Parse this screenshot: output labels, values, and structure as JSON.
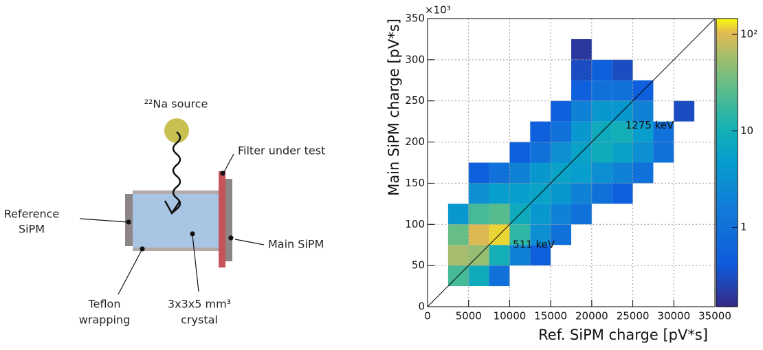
{
  "diagram": {
    "source": "²²Na source",
    "filter": "Filter under test",
    "reference": [
      "Reference",
      "SiPM"
    ],
    "main": "Main SiPM",
    "teflon": [
      "Teflon",
      "wrapping"
    ],
    "crystal": [
      "3x3x5 mm³",
      "crystal"
    ]
  },
  "chart_data": {
    "type": "heatmap",
    "xlabel": "Ref. SiPM charge [pV*s]",
    "ylabel": "Main SiPM charge [pV*s]",
    "y_multiplier": "×10³",
    "xlim": [
      0,
      35000
    ],
    "xticks": [
      0,
      5000,
      10000,
      15000,
      20000,
      25000,
      30000,
      35000
    ],
    "ylim": [
      0,
      350
    ],
    "yticks": [
      0,
      50,
      100,
      150,
      200,
      250,
      300,
      350
    ],
    "xbins": [
      0,
      2500,
      5000,
      7500,
      10000,
      12500,
      15000,
      17500,
      20000,
      22500,
      25000,
      27500,
      30000,
      32500,
      35000
    ],
    "ybins": [
      0,
      25,
      50,
      75,
      100,
      125,
      150,
      175,
      200,
      225,
      250,
      275,
      300,
      325,
      350
    ],
    "values": [
      [
        null,
        null,
        null,
        null,
        null,
        null,
        null,
        null,
        null,
        null,
        null,
        null,
        null,
        null
      ],
      [
        null,
        20,
        8,
        1,
        null,
        null,
        null,
        null,
        null,
        null,
        null,
        null,
        null,
        null
      ],
      [
        null,
        60,
        50,
        10,
        2,
        0.5,
        null,
        null,
        null,
        null,
        null,
        null,
        null,
        null
      ],
      [
        null,
        30,
        100,
        120,
        15,
        3,
        1,
        null,
        null,
        null,
        null,
        null,
        null,
        null
      ],
      [
        null,
        4,
        20,
        25,
        8,
        4,
        2,
        1,
        null,
        null,
        null,
        null,
        null,
        null
      ],
      [
        null,
        null,
        3,
        5,
        5,
        6,
        4,
        2,
        1,
        0.5,
        null,
        null,
        null,
        null
      ],
      [
        null,
        null,
        0.5,
        1,
        2,
        4,
        6,
        5,
        3,
        2,
        1,
        null,
        null,
        null
      ],
      [
        null,
        null,
        null,
        null,
        0.5,
        1,
        3,
        6,
        8,
        6,
        3,
        1,
        null,
        null
      ],
      [
        null,
        null,
        null,
        null,
        null,
        0.5,
        1,
        4,
        8,
        10,
        5,
        1,
        null,
        null
      ],
      [
        null,
        null,
        null,
        null,
        null,
        null,
        0.5,
        2,
        4,
        4,
        2,
        null,
        0.3,
        null
      ],
      [
        null,
        null,
        null,
        null,
        null,
        null,
        null,
        0.5,
        1,
        1,
        0.5,
        null,
        null,
        null
      ],
      [
        null,
        null,
        null,
        null,
        null,
        null,
        null,
        0.3,
        0.5,
        0.3,
        null,
        null,
        null,
        null
      ],
      [
        null,
        null,
        null,
        null,
        null,
        null,
        null,
        0.2,
        null,
        null,
        null,
        null,
        null,
        null
      ],
      [
        null,
        null,
        null,
        null,
        null,
        null,
        null,
        null,
        null,
        null,
        null,
        null,
        null,
        null
      ]
    ],
    "clim": [
      0.15,
      146
    ],
    "color_scale": "log",
    "cticks": [
      1,
      10,
      {
        "value": 100,
        "label": "10²"
      }
    ],
    "diagonal": {
      "x": [
        0,
        35000
      ],
      "y": [
        0,
        350
      ]
    },
    "annotations": [
      {
        "text": "511 keV",
        "x": 15500,
        "y": 75
      },
      {
        "text": "1275 keV",
        "x": 30000,
        "y": 220
      }
    ],
    "grid": true
  }
}
